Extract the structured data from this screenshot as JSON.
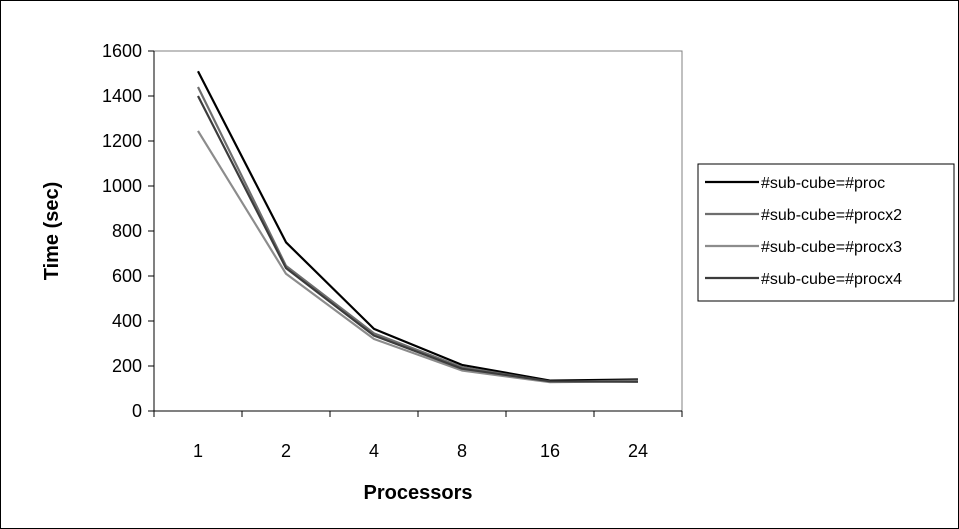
{
  "chart_data": {
    "type": "line",
    "xlabel": "Processors",
    "ylabel": "Time (sec)",
    "categories": [
      "1",
      "2",
      "4",
      "8",
      "16",
      "24"
    ],
    "ylim": [
      0,
      1600
    ],
    "yticks": [
      0,
      200,
      400,
      600,
      800,
      1000,
      1200,
      1400,
      1600
    ],
    "grid": false,
    "legend_position": "right",
    "series": [
      {
        "name": "#sub-cube=#proc",
        "color": "#000000",
        "values": [
          1510,
          750,
          365,
          205,
          135,
          140
        ]
      },
      {
        "name": "#sub-cube=#procx2",
        "color": "#6e6e6e",
        "values": [
          1440,
          645,
          345,
          195,
          130,
          135
        ]
      },
      {
        "name": "#sub-cube=#procx3",
        "color": "#8c8c8c",
        "values": [
          1245,
          610,
          320,
          180,
          128,
          132
        ]
      },
      {
        "name": "#sub-cube=#procx4",
        "color": "#3c3c3c",
        "values": [
          1400,
          635,
          335,
          188,
          132,
          130
        ]
      }
    ]
  }
}
